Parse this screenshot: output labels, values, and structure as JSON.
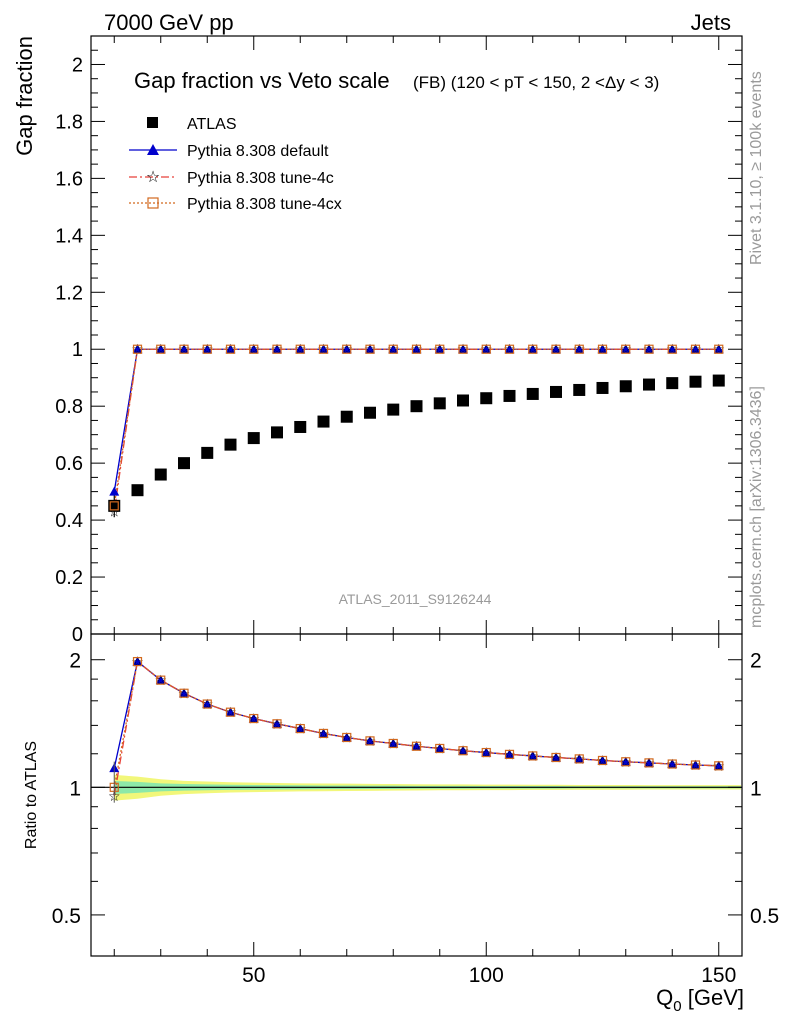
{
  "header": {
    "energy_label": "7000 GeV pp",
    "process_label": "Jets",
    "side_label_top": "Rivet 3.1.10, ≥ 100k events",
    "side_label_bottom": "mcplots.cern.ch [arXiv:1306.3436]",
    "analysis_id": "ATLAS_2011_S9126244"
  },
  "chart_data": [
    {
      "type": "scatter",
      "panel": "main",
      "title": "Gap fraction vs Veto scale",
      "title_suffix": "(FB) (120 < pT < 150, 2 <Δy < 3)",
      "xlabel": "Q0 [GeV]",
      "ylabel": "Gap fraction",
      "xlim": [
        15,
        155
      ],
      "ylim": [
        0,
        2.1
      ],
      "y_ticks": [
        "0",
        "0.2",
        "0.4",
        "0.6",
        "0.8",
        "1",
        "1.2",
        "1.4",
        "1.6",
        "1.8",
        "2"
      ],
      "x": [
        20,
        25,
        30,
        35,
        40,
        45,
        50,
        55,
        60,
        65,
        70,
        75,
        80,
        85,
        90,
        95,
        100,
        105,
        110,
        115,
        120,
        125,
        130,
        135,
        140,
        145,
        150
      ],
      "legend_placement": "top-left",
      "series": [
        {
          "name": "ATLAS",
          "color": "#000000",
          "marker": "square",
          "values": [
            0.45,
            0.505,
            0.56,
            0.6,
            0.636,
            0.665,
            0.688,
            0.708,
            0.727,
            0.746,
            0.763,
            0.777,
            0.788,
            0.8,
            0.81,
            0.82,
            0.828,
            0.836,
            0.843,
            0.85,
            0.857,
            0.864,
            0.87,
            0.876,
            0.881,
            0.886,
            0.89
          ]
        },
        {
          "name": "Pythia 8.308 default",
          "color": "#0000cc",
          "marker": "triangle",
          "line": "solid",
          "values": [
            0.5,
            1,
            1,
            1,
            1,
            1,
            1,
            1,
            1,
            1,
            1,
            1,
            1,
            1,
            1,
            1,
            1,
            1,
            1,
            1,
            1,
            1,
            1,
            1,
            1,
            1,
            1
          ]
        },
        {
          "name": "Pythia 8.308 tune-4c",
          "color": "#e8423a",
          "marker": "star",
          "line": "dashdot",
          "values": [
            0.43,
            1,
            1,
            1,
            1,
            1,
            1,
            1,
            1,
            1,
            1,
            1,
            1,
            1,
            1,
            1,
            1,
            1,
            1,
            1,
            1,
            1,
            1,
            1,
            1,
            1,
            1
          ]
        },
        {
          "name": "Pythia 8.308 tune-4cx",
          "color": "#d2691e",
          "marker": "open-square",
          "line": "dotted",
          "values": [
            0.45,
            1,
            1,
            1,
            1,
            1,
            1,
            1,
            1,
            1,
            1,
            1,
            1,
            1,
            1,
            1,
            1,
            1,
            1,
            1,
            1,
            1,
            1,
            1,
            1,
            1,
            1
          ]
        }
      ]
    },
    {
      "type": "line",
      "panel": "ratio",
      "xlabel": "Q0 [GeV]",
      "ylabel": "Ratio to ATLAS",
      "xlim": [
        15,
        155
      ],
      "ylim": [
        0.4,
        2.3
      ],
      "y_scale": "log",
      "x_ticks": [
        "50",
        "100",
        "150"
      ],
      "y_ticks": [
        "0.5",
        "1",
        "2"
      ],
      "x": [
        20,
        25,
        30,
        35,
        40,
        45,
        50,
        55,
        60,
        65,
        70,
        75,
        80,
        85,
        90,
        95,
        100,
        105,
        110,
        115,
        120,
        125,
        130,
        135,
        140,
        145,
        150
      ],
      "band_halfwidth_inner": [
        0.035,
        0.03,
        0.022,
        0.018,
        0.016,
        0.014,
        0.013,
        0.012,
        0.011,
        0.01,
        0.01,
        0.009,
        0.009,
        0.008,
        0.008,
        0.008,
        0.007,
        0.007,
        0.007,
        0.007,
        0.006,
        0.006,
        0.006,
        0.006,
        0.006,
        0.006,
        0.006
      ],
      "band_halfwidth_outer": [
        0.07,
        0.06,
        0.045,
        0.036,
        0.032,
        0.028,
        0.026,
        0.024,
        0.022,
        0.021,
        0.02,
        0.019,
        0.018,
        0.017,
        0.016,
        0.016,
        0.015,
        0.015,
        0.014,
        0.014,
        0.013,
        0.013,
        0.013,
        0.012,
        0.012,
        0.012,
        0.012
      ],
      "series": [
        {
          "name": "Pythia 8.308 default",
          "color": "#0000cc",
          "values": [
            1.11,
            1.98,
            1.79,
            1.667,
            1.572,
            1.504,
            1.453,
            1.412,
            1.376,
            1.34,
            1.311,
            1.287,
            1.269,
            1.25,
            1.235,
            1.22,
            1.208,
            1.196,
            1.186,
            1.176,
            1.167,
            1.157,
            1.149,
            1.142,
            1.135,
            1.129,
            1.124
          ]
        },
        {
          "name": "Pythia 8.308 tune-4c",
          "color": "#e8423a",
          "values": [
            0.955,
            1.98,
            1.79,
            1.667,
            1.572,
            1.504,
            1.453,
            1.412,
            1.376,
            1.34,
            1.311,
            1.287,
            1.269,
            1.25,
            1.235,
            1.22,
            1.208,
            1.196,
            1.186,
            1.176,
            1.167,
            1.157,
            1.149,
            1.142,
            1.135,
            1.129,
            1.124
          ]
        },
        {
          "name": "Pythia 8.308 tune-4cx",
          "color": "#d2691e",
          "values": [
            1.0,
            1.98,
            1.79,
            1.667,
            1.572,
            1.504,
            1.453,
            1.412,
            1.376,
            1.34,
            1.311,
            1.287,
            1.269,
            1.25,
            1.235,
            1.22,
            1.208,
            1.196,
            1.186,
            1.176,
            1.167,
            1.157,
            1.149,
            1.142,
            1.135,
            1.129,
            1.124
          ]
        }
      ]
    }
  ]
}
